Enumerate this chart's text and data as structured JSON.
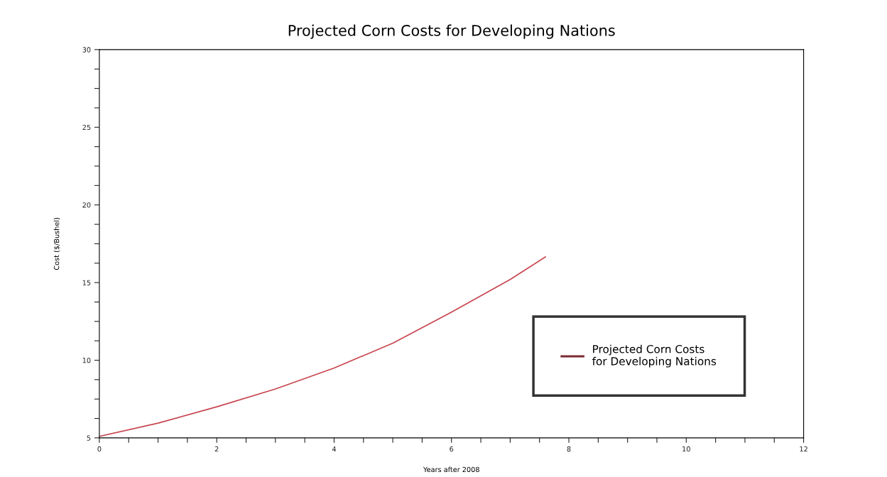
{
  "chart_data": {
    "type": "line",
    "title": "Projected Corn Costs for Developing Nations",
    "xlabel": "Years after 2008",
    "ylabel": "Cost ($/Bushel)",
    "x": [
      0,
      1,
      2,
      3,
      4,
      5,
      6,
      7,
      7.6
    ],
    "series": [
      {
        "name": "Projected Corn Costs\nfor Developing Nations",
        "color": "#c8454f",
        "values": [
          5.1,
          5.95,
          7.0,
          8.15,
          9.5,
          11.1,
          13.1,
          15.2,
          16.65
        ]
      }
    ],
    "xlim": [
      0,
      12
    ],
    "ylim": [
      5,
      30
    ],
    "xticks": [
      0,
      {
        "value": 0.5,
        "label": null
      },
      {
        "value": 1,
        "label": null
      },
      {
        "value": 1.5,
        "label": null
      },
      2,
      {
        "value": 2.5,
        "label": null
      },
      {
        "value": 3,
        "label": null
      },
      {
        "value": 3.5,
        "label": null
      },
      4,
      {
        "value": 4.5,
        "label": null
      },
      {
        "value": 5,
        "label": null
      },
      {
        "value": 5.5,
        "label": null
      },
      6,
      {
        "value": 6.5,
        "label": null
      },
      {
        "value": 7,
        "label": null
      },
      {
        "value": 7.5,
        "label": null
      },
      8,
      {
        "value": 8.5,
        "label": null
      },
      {
        "value": 9,
        "label": null
      },
      {
        "value": 9.5,
        "label": null
      },
      10,
      {
        "value": 10.5,
        "label": null
      },
      {
        "value": 11,
        "label": null
      },
      {
        "value": 11.5,
        "label": null
      },
      12
    ],
    "yticks": [
      5,
      {
        "value": 6.25,
        "label": null
      },
      {
        "value": 7.5,
        "label": null
      },
      {
        "value": 8.75,
        "label": null
      },
      10,
      {
        "value": 11.25,
        "label": null
      },
      {
        "value": 12.5,
        "label": null
      },
      {
        "value": 13.75,
        "label": null
      },
      15,
      {
        "value": 16.25,
        "label": null
      },
      {
        "value": 17.5,
        "label": null
      },
      {
        "value": 18.75,
        "label": null
      },
      20,
      {
        "value": 21.25,
        "label": null
      },
      {
        "value": 22.5,
        "label": null
      },
      {
        "value": 23.75,
        "label": null
      },
      25,
      {
        "value": 26.25,
        "label": null
      },
      {
        "value": 27.5,
        "label": null
      },
      {
        "value": 28.75,
        "label": null
      },
      30
    ],
    "grid": false,
    "legend": "bottom right",
    "marker": "none",
    "line_style": "solid"
  }
}
